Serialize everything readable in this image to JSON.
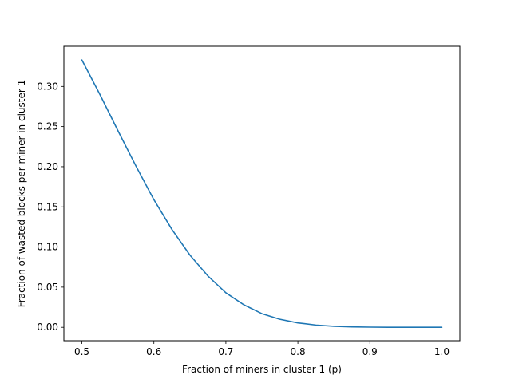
{
  "chart_data": {
    "type": "line",
    "title": "",
    "xlabel": "Fraction of miners in cluster 1 (p)",
    "ylabel": "Fraction of wasted blocks per miner in cluster 1",
    "xlim": [
      0.475,
      1.025
    ],
    "ylim": [
      -0.0167,
      0.35
    ],
    "x_ticks": [
      0.5,
      0.6,
      0.7,
      0.8,
      0.9,
      1.0
    ],
    "x_tick_labels": [
      "0.5",
      "0.6",
      "0.7",
      "0.8",
      "0.9",
      "1.0"
    ],
    "y_ticks": [
      0.0,
      0.05,
      0.1,
      0.15,
      0.2,
      0.25,
      0.3
    ],
    "y_tick_labels": [
      "0.00",
      "0.05",
      "0.10",
      "0.15",
      "0.20",
      "0.25",
      "0.30"
    ],
    "grid": false,
    "series": [
      {
        "color": "#1f77b4",
        "x": [
          0.5,
          0.525,
          0.55,
          0.575,
          0.6,
          0.625,
          0.65,
          0.675,
          0.7,
          0.725,
          0.75,
          0.775,
          0.8,
          0.825,
          0.85,
          0.875,
          0.9,
          0.925,
          0.95,
          0.975,
          1.0
        ],
        "y": [
          0.333,
          0.29,
          0.245,
          0.201,
          0.159,
          0.122,
          0.09,
          0.064,
          0.043,
          0.028,
          0.017,
          0.01,
          0.0055,
          0.0028,
          0.0013,
          0.0005,
          0.0002,
          5e-05,
          1e-05,
          0.0,
          0.0
        ]
      }
    ]
  }
}
